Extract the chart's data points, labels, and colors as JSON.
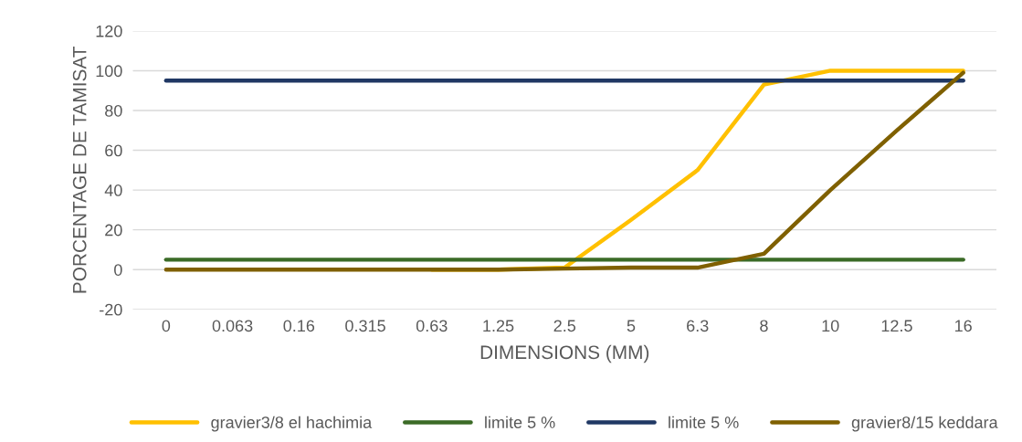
{
  "chart_data": {
    "type": "line",
    "xlabel": "DIMENSIONS (MM)",
    "ylabel": "PORCENTAGE DE TAMISAT",
    "categories": [
      "0",
      "0.063",
      "0.16",
      "0.315",
      "0.63",
      "1.25",
      "2.5",
      "5",
      "6.3",
      "8",
      "10",
      "12.5",
      "16"
    ],
    "series": [
      {
        "name": "gravier3/8 el hachimia",
        "color": "#ffc000",
        "values": [
          null,
          null,
          null,
          null,
          0,
          0,
          1,
          25,
          50,
          93,
          100,
          100,
          100
        ]
      },
      {
        "name": "limite 5 %",
        "color": "#3b6b27",
        "values": [
          5,
          5,
          5,
          5,
          5,
          5,
          5,
          5,
          5,
          5,
          5,
          5,
          5
        ]
      },
      {
        "name": "limite 5 %",
        "color": "#203864",
        "values": [
          95,
          95,
          95,
          95,
          95,
          95,
          95,
          95,
          95,
          95,
          95,
          95,
          95
        ]
      },
      {
        "name": "gravier8/15 keddara",
        "color": "#7f6000",
        "values": [
          0,
          0,
          0,
          0,
          0,
          0,
          0.5,
          1,
          1,
          8,
          40,
          70,
          99
        ]
      }
    ],
    "ylim": [
      -20,
      120
    ],
    "yticks": [
      -20,
      0,
      20,
      40,
      60,
      80,
      100,
      120
    ],
    "grid": "y",
    "legend": "bottom",
    "marker": "none",
    "line_style": "solid"
  }
}
